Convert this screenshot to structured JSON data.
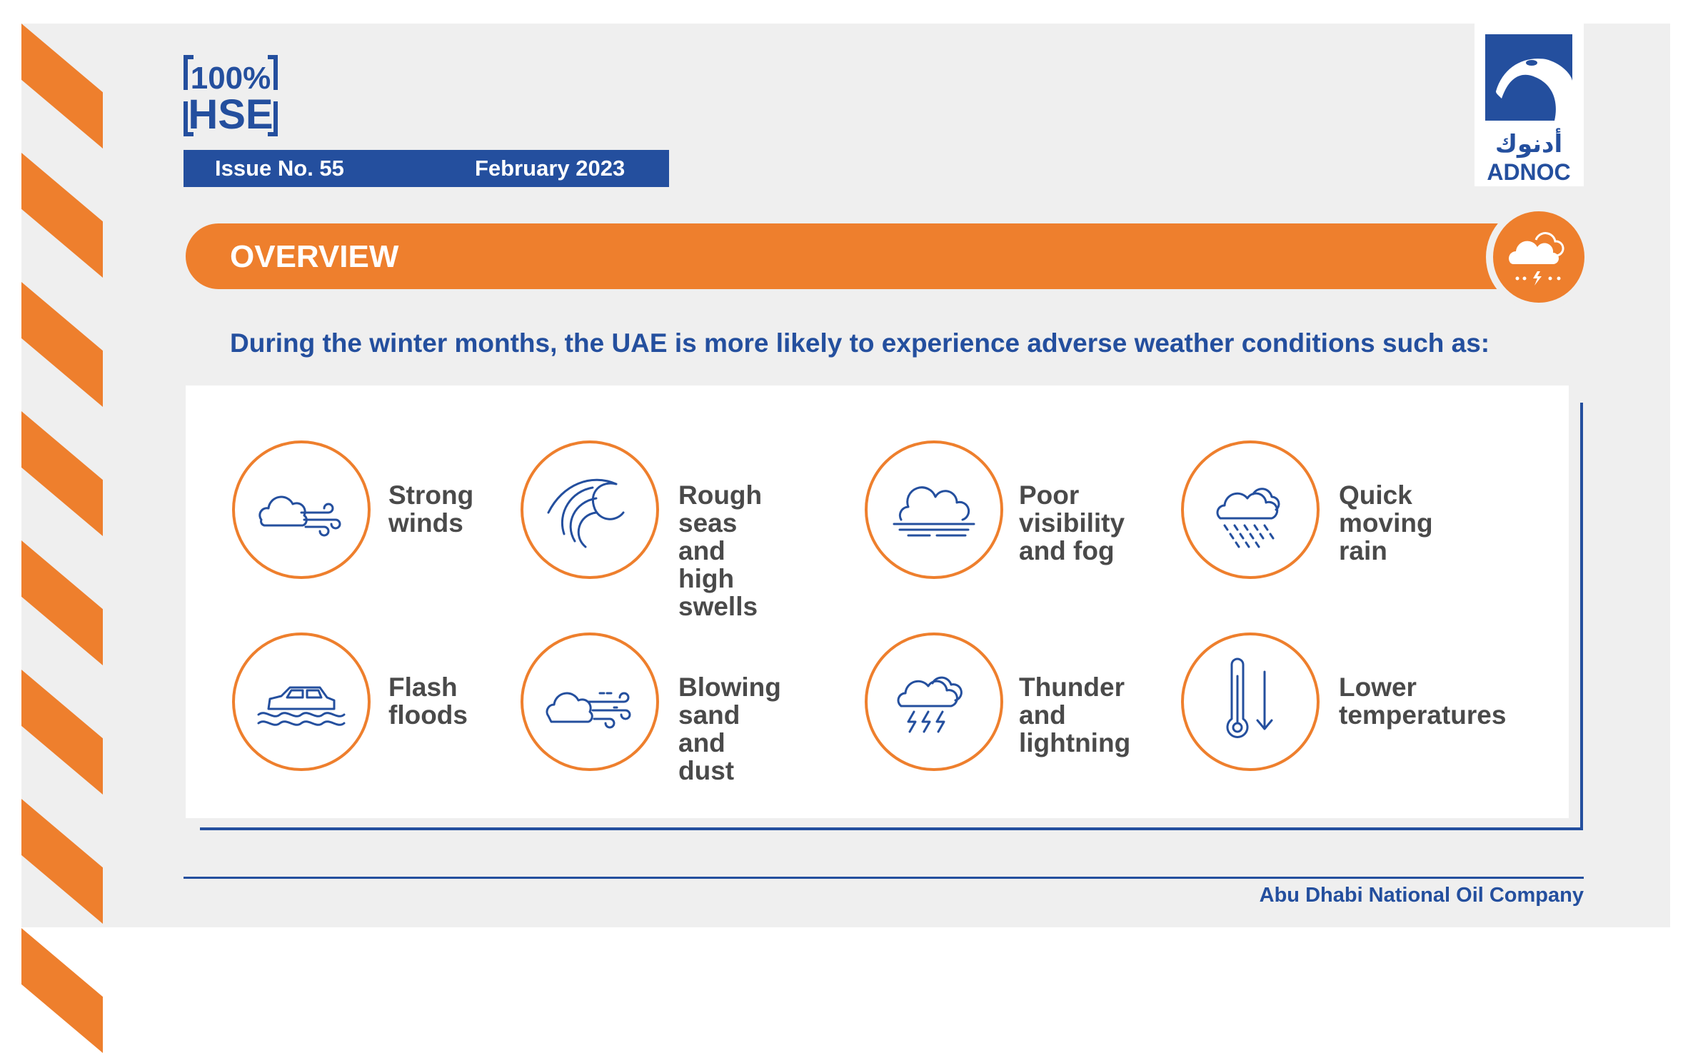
{
  "header": {
    "logo_text_line1": "100%",
    "logo_text_line2": "HSE",
    "issue": "Issue No. 55",
    "date": "February 2023"
  },
  "brand": {
    "arabic": "أدنوك",
    "name": "ADNOC"
  },
  "section": {
    "title": "OVERVIEW",
    "icon": "storm-cloud-icon"
  },
  "intro": "During the winter months, the UAE is more likely to experience adverse weather conditions such as:",
  "conditions": [
    {
      "label": "Strong\nwinds",
      "icon": "wind-cloud-icon"
    },
    {
      "label": "Rough seas\nand high\nswells",
      "icon": "wave-icon"
    },
    {
      "label": "Poor\nvisibility\nand fog",
      "icon": "fog-icon"
    },
    {
      "label": "Quick\nmoving\nrain",
      "icon": "rain-icon"
    },
    {
      "label": "Flash\nfloods",
      "icon": "flooded-car-icon"
    },
    {
      "label": "Blowing\nsand and\ndust",
      "icon": "dust-icon"
    },
    {
      "label": "Thunder\nand\nlightning",
      "icon": "lightning-icon"
    },
    {
      "label": "Lower\ntemperatures",
      "icon": "thermometer-icon"
    }
  ],
  "footer": "Abu Dhabi National Oil Company",
  "colors": {
    "orange": "#ee7f2d",
    "blue": "#244f9e",
    "gray": "#efefef"
  }
}
